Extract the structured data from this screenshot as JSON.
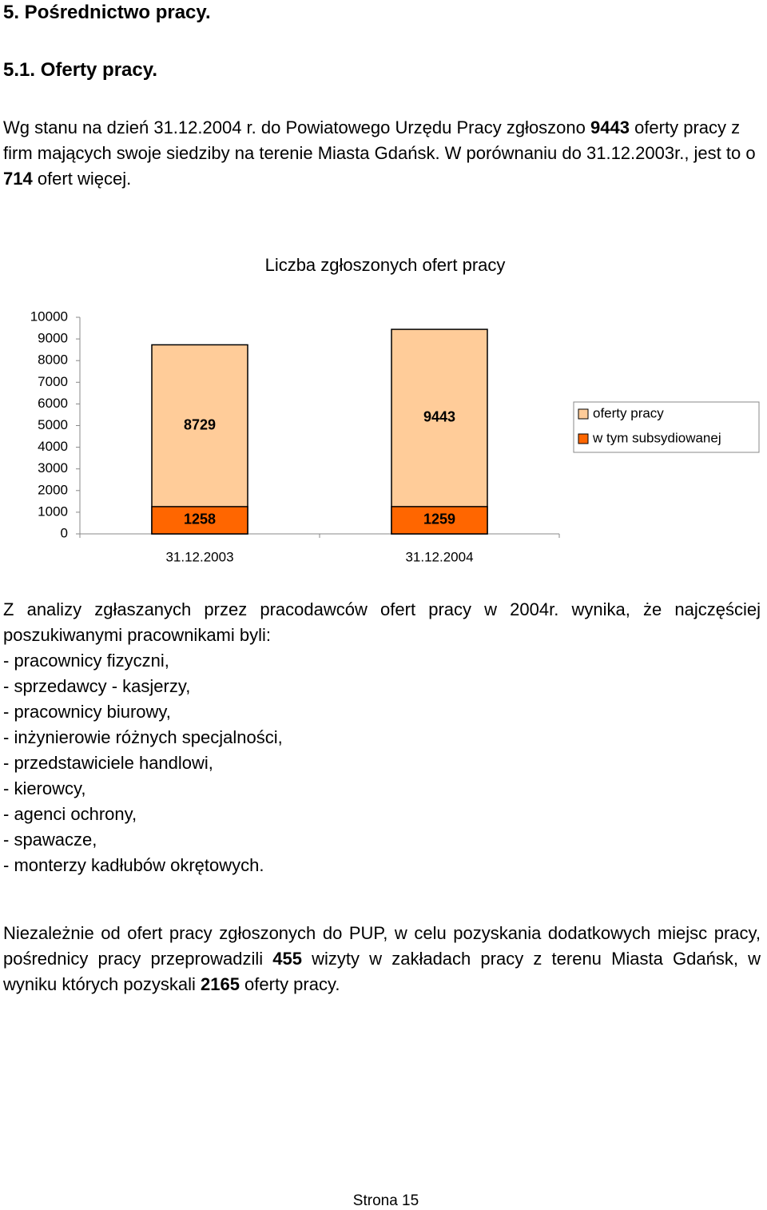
{
  "heading": "5. Pośrednictwo pracy.",
  "subheading": "5.1. Oferty pracy.",
  "intro": [
    "Wg stanu na dzień 31.12.2004 r. do Powiatowego Urzędu Pracy zgłoszono ",
    "9443",
    " oferty pracy z firm mających swoje siedziby na terenie Miasta Gdańsk. W porównaniu do 31.12.2003r., jest to o ",
    "714",
    " ofert więcej."
  ],
  "chart_data": {
    "type": "bar",
    "title": "Liczba zgłoszonych ofert pracy",
    "categories": [
      "31.12.2003",
      "31.12.2004"
    ],
    "series": [
      {
        "name": "oferty pracy",
        "color": "#ffcc99",
        "values": [
          8729,
          9443
        ]
      },
      {
        "name": "w tym subsydiowanej",
        "color": "#ff6600",
        "values": [
          1258,
          1259
        ]
      }
    ],
    "stacked": false,
    "ylim": [
      0,
      10000
    ],
    "yticks": [
      0,
      1000,
      2000,
      3000,
      4000,
      5000,
      6000,
      7000,
      8000,
      9000,
      10000
    ],
    "grid": false,
    "legend": "right"
  },
  "analysis": "Z analizy zgłaszanych przez pracodawców ofert pracy w 2004r. wynika, że najczęściej poszukiwanymi pracownikami byli:",
  "list": [
    "- pracownicy fizyczni,",
    "- sprzedawcy - kasjerzy,",
    "- pracownicy biurowy,",
    "- inżynierowie różnych specjalności,",
    "- przedstawiciele handlowi,",
    "- kierowcy,",
    "- agenci ochrony,",
    "- spawacze,",
    "- monterzy kadłubów okrętowych."
  ],
  "closing": [
    "Niezależnie od ofert pracy zgłoszonych do PUP, w celu pozyskania dodatkowych miejsc pracy, pośrednicy pracy przeprowadzili ",
    "455",
    " wizyty w zakładach pracy z terenu Miasta Gdańsk, w wyniku których pozyskali ",
    "2165",
    " oferty pracy."
  ],
  "footer": "Strona 15"
}
